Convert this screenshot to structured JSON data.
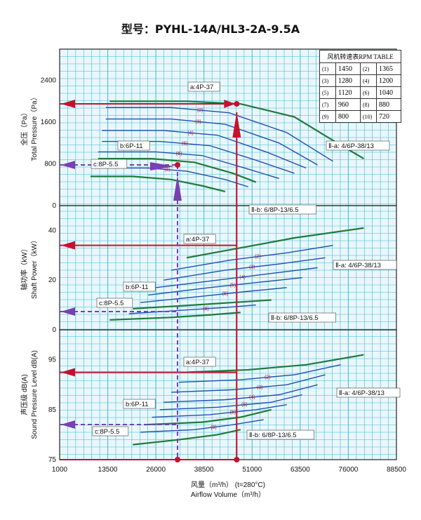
{
  "chart_data": {
    "type": "line",
    "title": "型号：PYHL-14A/HL3-2A-9.5A",
    "xlabel_cn": "风量（m³/h） (t=280°C)",
    "xlabel_en": "Airflow Volume（m³/h）",
    "x_ticks": [
      "1000",
      "13500",
      "26000",
      "38500",
      "51000",
      "63500",
      "76000",
      "88500"
    ],
    "xlim": [
      1000,
      88500
    ],
    "panels": [
      {
        "name": "pressure",
        "ylabel_cn": "全压（Pa）",
        "ylabel_en": "Total Pressure（Pa）",
        "y_ticks": [
          "0",
          "800",
          "1600",
          "2400"
        ],
        "ylim": [
          0,
          3000
        ],
        "annotations": [
          "a:4P-37",
          "b:6P-11",
          "c:8P-5.5",
          "Ⅱ-a: 4/6P-38/13",
          "Ⅱ-b: 6/8P-13/6.5"
        ],
        "series": [
          {
            "name": "a:4P-37",
            "color": "#1f7a3a",
            "x": [
              14000,
              34000,
              48000,
              62000,
              72000,
              80000
            ],
            "y": [
              2000,
              2000,
              1950,
              1700,
              1250,
              900
            ]
          },
          {
            "name": "(2)",
            "color": "#1f4fae",
            "x": [
              13000,
              30000,
              45000,
              60000,
              72000
            ],
            "y": [
              1880,
              1880,
              1780,
              1400,
              850
            ]
          },
          {
            "name": "(3)",
            "color": "#1f4fae",
            "x": [
              13000,
              30000,
              44000,
              58000,
              68000
            ],
            "y": [
              1660,
              1660,
              1560,
              1200,
              780
            ]
          },
          {
            "name": "(4)",
            "color": "#1f4fae",
            "x": [
              12000,
              28000,
              42000,
              55000,
              65000
            ],
            "y": [
              1440,
              1440,
              1350,
              1020,
              720
            ]
          },
          {
            "name": "(5)",
            "color": "#1f4fae",
            "x": [
              12000,
              27000,
              40000,
              52000,
              62000
            ],
            "y": [
              1230,
              1230,
              1150,
              870,
              620
            ]
          },
          {
            "name": "(6)",
            "color": "#1f4fae",
            "x": [
              11000,
              26000,
              38000,
              50000,
              58000
            ],
            "y": [
              1030,
              1030,
              960,
              700,
              520
            ]
          },
          {
            "name": "b:6P-11",
            "color": "#1f7a3a",
            "x": [
              11000,
              25000,
              36000,
              46000,
              52000
            ],
            "y": [
              900,
              900,
              830,
              620,
              450
            ]
          },
          {
            "name": "(8)",
            "color": "#1f4fae",
            "x": [
              10000,
              24000,
              34000,
              44000,
              50000
            ],
            "y": [
              720,
              720,
              660,
              500,
              360
            ]
          },
          {
            "name": "c:8P-5.5",
            "color": "#1f7a3a",
            "x": [
              9000,
              20000,
              30000,
              38000,
              44000
            ],
            "y": [
              560,
              560,
              500,
              380,
              270
            ]
          }
        ],
        "operating_point": {
          "x": 47000,
          "y": 1950
        }
      },
      {
        "name": "power",
        "ylabel_cn": "轴功率（kW）",
        "ylabel_en": "Shaft Power（kW）",
        "y_ticks": [
          "0",
          "20",
          "40"
        ],
        "ylim": [
          0,
          50
        ],
        "annotations": [
          "a:4P-37",
          "b:6P-11",
          "c:8P-5.5",
          "Ⅱ-a: 4/6P-38/13",
          "Ⅱ-b: 6/8P-13/6.5"
        ],
        "series": [
          {
            "name": "a:4P-37",
            "color": "#1f7a3a",
            "x": [
              34000,
              48000,
              62000,
              80000
            ],
            "y": [
              29,
              33,
              37,
              41
            ]
          },
          {
            "name": "(2)",
            "color": "#1f4fae",
            "x": [
              30000,
              45000,
              60000,
              72000
            ],
            "y": [
              24,
              28,
              31,
              34
            ]
          },
          {
            "name": "(3)",
            "color": "#1f4fae",
            "x": [
              28000,
              44000,
              58000,
              70000
            ],
            "y": [
              20,
              24,
              26.5,
              29
            ]
          },
          {
            "name": "(4)",
            "color": "#1f4fae",
            "x": [
              26000,
              42000,
              55000,
              68000
            ],
            "y": [
              17,
              20,
              22.5,
              25
            ]
          },
          {
            "name": "(5)",
            "color": "#1f4fae",
            "x": [
              24000,
              40000,
              52000,
              64000
            ],
            "y": [
              14,
              17,
              19,
              21
            ]
          },
          {
            "name": "(6)",
            "color": "#1f4fae",
            "x": [
              22000,
              38000,
              50000,
              60000
            ],
            "y": [
              11,
              13.5,
              15.5,
              17
            ]
          },
          {
            "name": "b:6P-11",
            "color": "#1f7a3a",
            "x": [
              20000,
              36000,
              46000,
              56000
            ],
            "y": [
              8.5,
              10,
              11,
              12
            ]
          },
          {
            "name": "(8)",
            "color": "#1f4fae",
            "x": [
              19000,
              34000,
              44000,
              52000
            ],
            "y": [
              6.5,
              8,
              9,
              10
            ]
          },
          {
            "name": "c:8P-5.5",
            "color": "#1f7a3a",
            "x": [
              14000,
              30000,
              40000,
              48000
            ],
            "y": [
              4,
              5,
              6,
              7
            ]
          }
        ],
        "operating_point": {
          "x": 47000,
          "y": 34
        }
      },
      {
        "name": "noise",
        "ylabel_cn": "声压级 dB(A)",
        "ylabel_en": "Sound Pressure Level dB(A)",
        "y_ticks": [
          "75",
          "85",
          "95"
        ],
        "ylim": [
          75,
          101
        ],
        "annotations": [
          "a:4P-37",
          "b:6P-11",
          "c:8P-5.5",
          "Ⅱ-a: 4/6P-38/13",
          "Ⅱ-b: 6/8P-13/6.5"
        ],
        "series": [
          {
            "name": "a:4P-37",
            "color": "#1f7a3a",
            "x": [
              34000,
              50000,
              65000,
              80000
            ],
            "y": [
              92.5,
              93,
              94,
              96
            ]
          },
          {
            "name": "(2)",
            "color": "#1f4fae",
            "x": [
              32000,
              48000,
              62000,
              74000
            ],
            "y": [
              90.5,
              91,
              92,
              94
            ]
          },
          {
            "name": "(3)",
            "color": "#1f4fae",
            "x": [
              30000,
              46000,
              60000,
              70000
            ],
            "y": [
              88.5,
              89,
              90,
              92
            ]
          },
          {
            "name": "(4)",
            "color": "#1f4fae",
            "x": [
              28000,
              44000,
              58000,
              68000
            ],
            "y": [
              86.5,
              87,
              88,
              90
            ]
          },
          {
            "name": "(5)",
            "color": "#1f4fae",
            "x": [
              27000,
              42000,
              56000,
              64000
            ],
            "y": [
              85,
              85.5,
              86.5,
              88
            ]
          },
          {
            "name": "(6)",
            "color": "#1f4fae",
            "x": [
              25000,
              40000,
              52000,
              60000
            ],
            "y": [
              83.5,
              84,
              85,
              86
            ]
          },
          {
            "name": "b:6P-11",
            "color": "#1f7a3a",
            "x": [
              23000,
              38000,
              48000,
              56000
            ],
            "y": [
              82,
              82.5,
              83.5,
              85
            ]
          },
          {
            "name": "(8)",
            "color": "#1f4fae",
            "x": [
              22000,
              36000,
              46000,
              54000
            ],
            "y": [
              80.5,
              81,
              82,
              83
            ]
          },
          {
            "name": "c:8P-5.5",
            "color": "#1f7a3a",
            "x": [
              20000,
              32000,
              42000,
              48000
            ],
            "y": [
              78,
              79,
              80,
              81
            ]
          }
        ],
        "operating_point": {
          "x": 47000,
          "y": 92.5
        }
      }
    ],
    "rpm_table": {
      "header": "风机转速表RPM  TABLE",
      "rows": [
        [
          "(1)",
          "1450",
          "(2)",
          "1365"
        ],
        [
          "(3)",
          "1280",
          "(4)",
          "1200"
        ],
        [
          "(5)",
          "1120",
          "(6)",
          "1040"
        ],
        [
          "(7)",
          "960",
          "(8)",
          "880"
        ],
        [
          "(9)",
          "800",
          "(10)",
          "720"
        ]
      ]
    },
    "curve_numbers": [
      "(2)",
      "(3)",
      "(4)",
      "(5)",
      "(6)",
      "(8)",
      "(9)"
    ],
    "colors": {
      "grid": "#3fb8d8",
      "grid_bg": "#e9f7fb",
      "red": "#c8102e",
      "purple": "#7a3fb0",
      "green": "#1f7a3a",
      "blue": "#1f4fae"
    }
  }
}
